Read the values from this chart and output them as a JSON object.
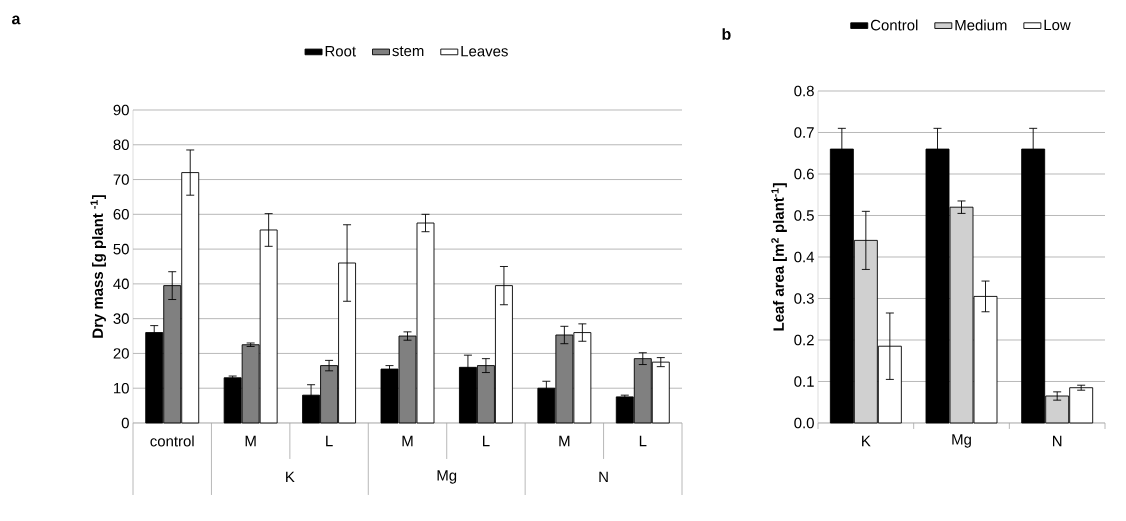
{
  "chart_data": [
    {
      "type": "bar",
      "title": "a",
      "ylabel": "**Dry  mass [g plant $^{-1}$]**",
      "categories": [
        "control",
        "M",
        "L",
        "M",
        "L",
        "M",
        "L"
      ],
      "annotations": [
        "K",
        "Mg",
        "N"
      ],
      "series": [
        {
          "name": "Root",
          "color": "#000000",
          "values": [
            26,
            13,
            8,
            15.5,
            16,
            10,
            7.5
          ],
          "errors": [
            2,
            0.5,
            3,
            1,
            3.5,
            2,
            0.5
          ]
        },
        {
          "name": "stem",
          "color": "#808080",
          "values": [
            39.5,
            22.5,
            16.5,
            25,
            16.5,
            25.3,
            18.5
          ],
          "errors": [
            4,
            0.5,
            1.5,
            1.2,
            2,
            2.5,
            1.7
          ]
        },
        {
          "name": "Leaves",
          "color": "#ffffff",
          "values": [
            72,
            55.5,
            46,
            57.5,
            39.5,
            26,
            17.5
          ],
          "errors": [
            6.5,
            4.7,
            11,
            2.5,
            5.5,
            2.5,
            1.3
          ]
        }
      ],
      "ylim": [
        0,
        90
      ],
      "yticks": [
        0,
        10,
        20,
        30,
        40,
        50,
        60,
        70,
        80,
        90
      ],
      "grid": "y",
      "legend": "top"
    },
    {
      "type": "bar",
      "title": "b",
      "ylabel": "**Leaf area [m$^{2}$ plant$^{-1}$]**",
      "categories": [
        "K",
        "Mg",
        "N"
      ],
      "series": [
        {
          "name": "Control",
          "color": "#000000",
          "values": [
            0.66,
            0.66,
            0.66
          ],
          "errors": [
            0.05,
            0.05,
            0.05
          ]
        },
        {
          "name": "Medium",
          "color": "#d0d0d0",
          "values": [
            0.44,
            0.52,
            0.065
          ],
          "errors": [
            0.07,
            0.015,
            0.01
          ]
        },
        {
          "name": "Low",
          "color": "#ffffff",
          "values": [
            0.185,
            0.305,
            0.085
          ],
          "errors": [
            0.08,
            0.037,
            0.006
          ]
        }
      ],
      "ylim": [
        0,
        0.8
      ],
      "yticks": [
        {
          "value": 0,
          "label": "0.0"
        },
        0.1,
        0.2,
        0.3,
        0.4,
        0.5,
        0.6,
        0.7,
        0.8
      ],
      "grid": "y",
      "legend": "top"
    }
  ]
}
